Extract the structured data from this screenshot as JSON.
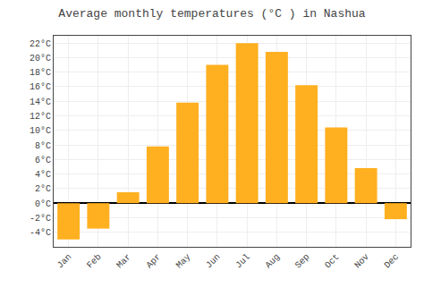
{
  "chart_data": {
    "type": "bar",
    "title": "Average monthly temperatures (°C ) in Nashua",
    "categories": [
      "Jan",
      "Feb",
      "Mar",
      "Apr",
      "May",
      "Jun",
      "Jul",
      "Aug",
      "Sep",
      "Oct",
      "Nov",
      "Dec"
    ],
    "values": [
      -5.0,
      -3.5,
      1.5,
      7.8,
      13.8,
      19.0,
      22.0,
      20.8,
      16.2,
      10.4,
      4.8,
      -2.2
    ],
    "color": "#FFB020",
    "ylim": [
      -6,
      23
    ],
    "yticks": [
      {
        "value": -4,
        "label": "-4°C"
      },
      {
        "value": -2,
        "label": "-2°C"
      },
      {
        "value": 0,
        "label": "0°C"
      },
      {
        "value": 2,
        "label": "2°C"
      },
      {
        "value": 4,
        "label": "4°C"
      },
      {
        "value": 6,
        "label": "6°C"
      },
      {
        "value": 8,
        "label": "8°C"
      },
      {
        "value": 10,
        "label": "10°C"
      },
      {
        "value": 12,
        "label": "12°C"
      },
      {
        "value": 14,
        "label": "14°C"
      },
      {
        "value": 16,
        "label": "16°C"
      },
      {
        "value": 18,
        "label": "18°C"
      },
      {
        "value": 20,
        "label": "20°C"
      },
      {
        "value": 22,
        "label": "22°C"
      }
    ],
    "grid": true
  }
}
